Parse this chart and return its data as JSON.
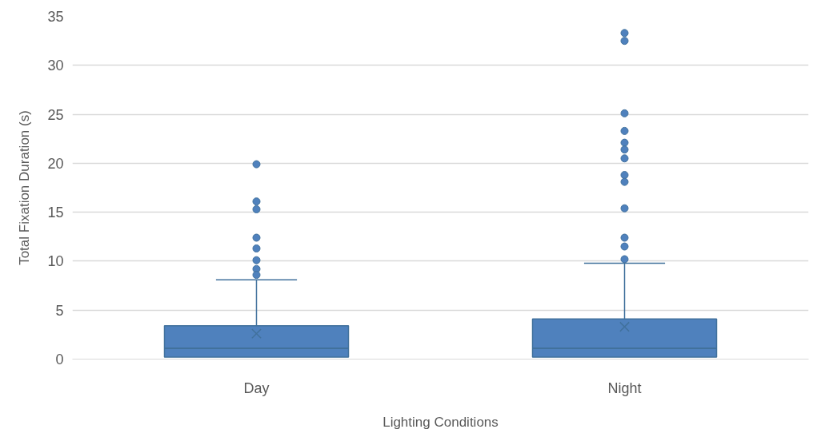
{
  "chart_data": {
    "type": "box",
    "xlabel": "Lighting Conditions",
    "ylabel": "Total Fixation Duration (s)",
    "categories": [
      "Day",
      "Night"
    ],
    "boxes": [
      {
        "low": 0.2,
        "q1": 0.2,
        "median": 1.1,
        "q3": 3.4,
        "high": 8.1,
        "mean": 2.6,
        "outliers": [
          19.9,
          16.1,
          15.3,
          12.4,
          11.3,
          10.1,
          9.2,
          8.6
        ]
      },
      {
        "low": 0.2,
        "q1": 0.2,
        "median": 1.1,
        "q3": 4.1,
        "high": 9.8,
        "mean": 3.3,
        "outliers": [
          33.3,
          32.5,
          25.1,
          23.3,
          22.1,
          21.4,
          20.5,
          18.8,
          18.1,
          15.4,
          12.4,
          11.5,
          10.2
        ]
      }
    ],
    "color": "#4f81bd",
    "ylim": [
      0,
      35
    ],
    "yticks": [
      0,
      5,
      10,
      15,
      20,
      25,
      30,
      35
    ],
    "grid": "y"
  }
}
